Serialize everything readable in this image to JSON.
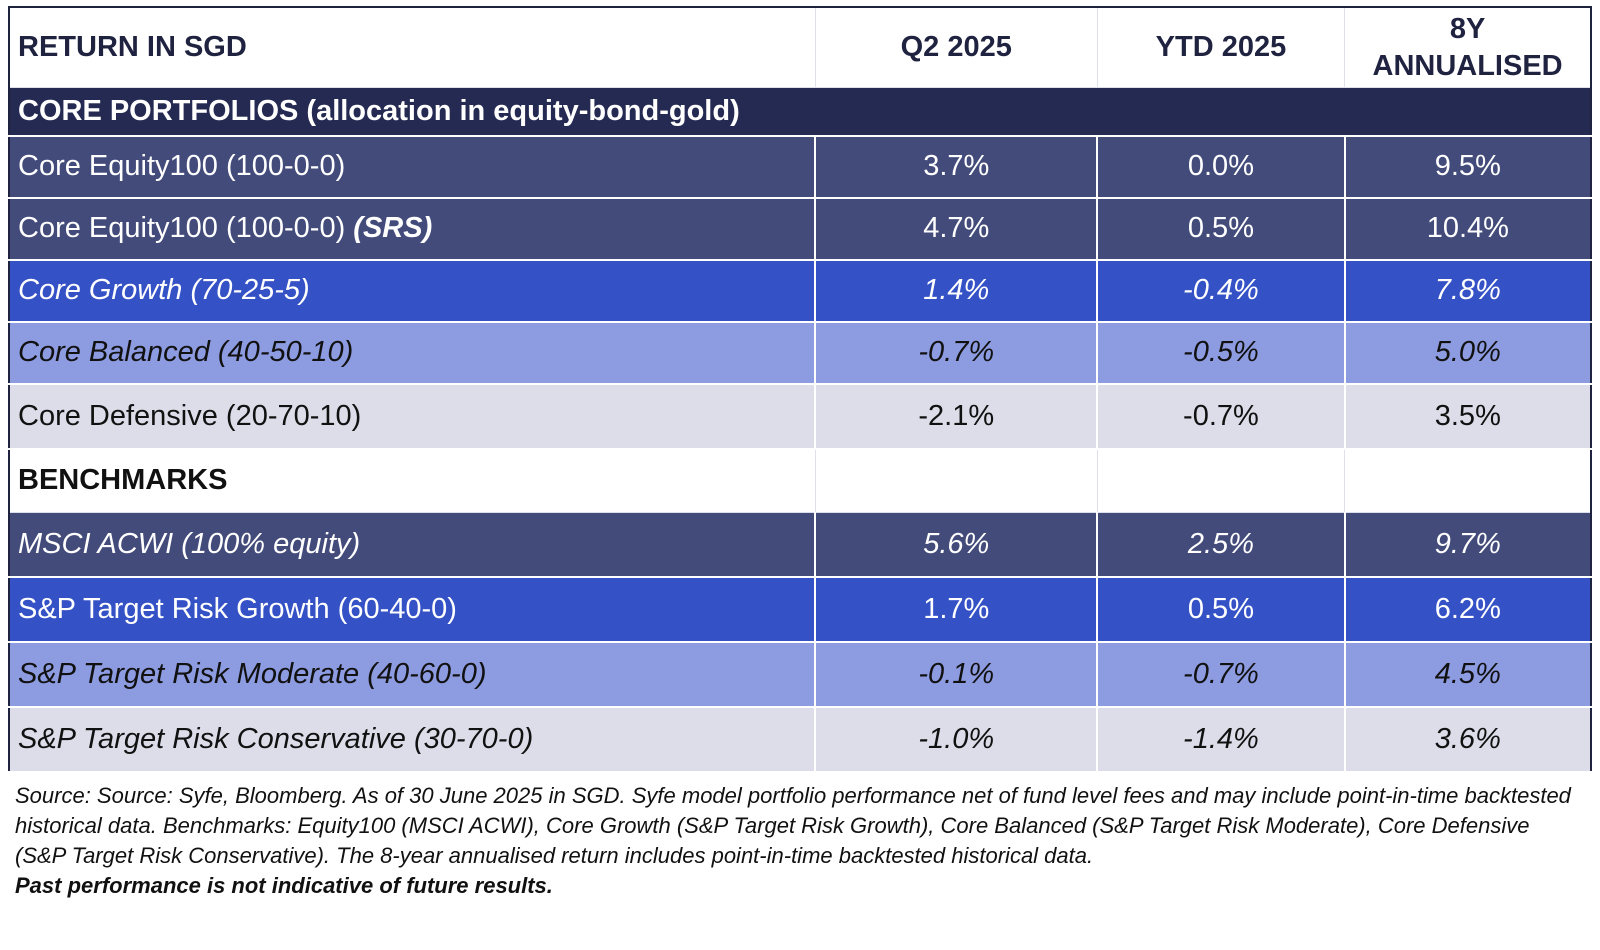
{
  "header": {
    "title": "RETURN IN SGD",
    "col_q2": "Q2 2025",
    "col_ytd": "YTD 2025",
    "col_8y_line1": "8Y",
    "col_8y_line2": "ANNUALISED"
  },
  "core_section": {
    "label": "CORE PORTFOLIOS",
    "sublabel": "(allocation in equity-bond-gold)"
  },
  "core_rows": [
    {
      "name": "Core Equity100 (100-0-0)",
      "q2": "3.7%",
      "ytd": "0.0%",
      "y8": "9.5%"
    },
    {
      "name": "Core Equity100 (100-0-0)",
      "tag": "(SRS)",
      "q2": "4.7%",
      "ytd": "0.5%",
      "y8": "10.4%"
    },
    {
      "name": "Core Growth (70-25-5)",
      "q2": "1.4%",
      "ytd": "-0.4%",
      "y8": "7.8%"
    },
    {
      "name": "Core Balanced (40-50-10)",
      "q2": "-0.7%",
      "ytd": "-0.5%",
      "y8": "5.0%"
    },
    {
      "name": "Core Defensive (20-70-10)",
      "q2": "-2.1%",
      "ytd": "-0.7%",
      "y8": "3.5%"
    }
  ],
  "bench_section": {
    "label": "BENCHMARKS"
  },
  "bench_rows": [
    {
      "name": "MSCI ACWI (100% equity)",
      "q2": "5.6%",
      "ytd": "2.5%",
      "y8": "9.7%"
    },
    {
      "name": "S&P Target Risk Growth (60-40-0)",
      "q2": "1.7%",
      "ytd": "0.5%",
      "y8": "6.2%"
    },
    {
      "name": "S&P Target Risk Moderate (40-60-0)",
      "q2": "-0.1%",
      "ytd": "-0.7%",
      "y8": "4.5%"
    },
    {
      "name": "S&P Target Risk Conservative (30-70-0)",
      "q2": "-1.0%",
      "ytd": "-1.4%",
      "y8": "3.6%"
    }
  ],
  "footnote": {
    "source": "Source: Source: Syfe, Bloomberg. As of 30 June 2025 in SGD. Syfe model portfolio performance net of fund level fees and may include point-in-time backtested historical data. Benchmarks: Equity100 (MSCI ACWI), Core Growth (S&P Target Risk Growth), Core Balanced (S&P Target Risk Moderate), Core Defensive (S&P Target Risk Conservative). The 8-year annualised return includes point-in-time backtested historical data.",
    "disclaimer": "Past performance is not indicative of future results."
  },
  "colors": {
    "header_band": "#252a52",
    "navy": "#434b7b",
    "blue": "#3451c6",
    "periwinkle": "#8d9be0",
    "pale": "#dcdde9"
  }
}
